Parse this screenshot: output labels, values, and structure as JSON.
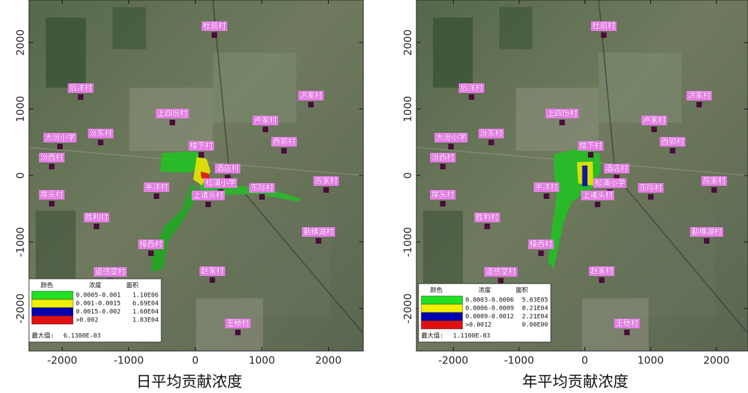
{
  "panels": [
    {
      "caption": "日平均贡献浓度",
      "xlim": [
        -2500,
        2525
      ],
      "ylim": [
        -2640,
        2640
      ],
      "xticks": [
        -2000,
        -1000,
        0,
        1000,
        2000
      ],
      "yticks": [
        -2000,
        -1000,
        0,
        1000,
        2000
      ],
      "legend": {
        "headers": [
          "颜色",
          "浓度",
          "面积"
        ],
        "rows": [
          {
            "color": "#22e022",
            "range": "0.0005-0.001",
            "area": "1.10E06"
          },
          {
            "color": "#f0f000",
            "range": "0.001-0.0015",
            "area": "6.69E04"
          },
          {
            "color": "#0000b0",
            "range": "0.0015-0.002",
            "area": "1.60E04"
          },
          {
            "color": "#e01010",
            "range": ">0.002",
            "area": "1.83E04"
          }
        ],
        "max_label": "最大值:",
        "max_value": "6.1300E-03"
      }
    },
    {
      "caption": "年平均贡献浓度",
      "xlim": [
        -2560,
        2480
      ],
      "ylim": [
        -2640,
        2640
      ],
      "xticks": [
        -2000,
        -1000,
        0,
        1000,
        2000
      ],
      "yticks": [
        -2000,
        -1000,
        0,
        1000,
        2000
      ],
      "legend": {
        "headers": [
          "颜色",
          "浓度",
          "面积"
        ],
        "rows": [
          {
            "color": "#22e022",
            "range": "0.0003-0.0006",
            "area": "5.03E05"
          },
          {
            "color": "#f0f000",
            "range": "0.0006-0.0009",
            "area": "8.21E04"
          },
          {
            "color": "#0000b0",
            "range": "0.0009-0.0012",
            "area": "2.21E04"
          },
          {
            "color": "#e01010",
            "range": ">0.0012",
            "area": "0.00E00"
          }
        ],
        "max_label": "最大值:",
        "max_value": "1.1100E-03"
      }
    }
  ],
  "villages": [
    "杜前村",
    "后洋村",
    "洪家村",
    "上四份村",
    "卢家村",
    "大汾小学",
    "汾东村",
    "楼下村",
    "西郭村",
    "汾西村",
    "酒店村",
    "松浦小学",
    "岸头村",
    "半洋村",
    "东际村",
    "厉家村",
    "上诸头村",
    "胜利村",
    "勤横湖村",
    "樟西村",
    "道感堂村",
    "赵家村",
    "王穗村"
  ]
}
